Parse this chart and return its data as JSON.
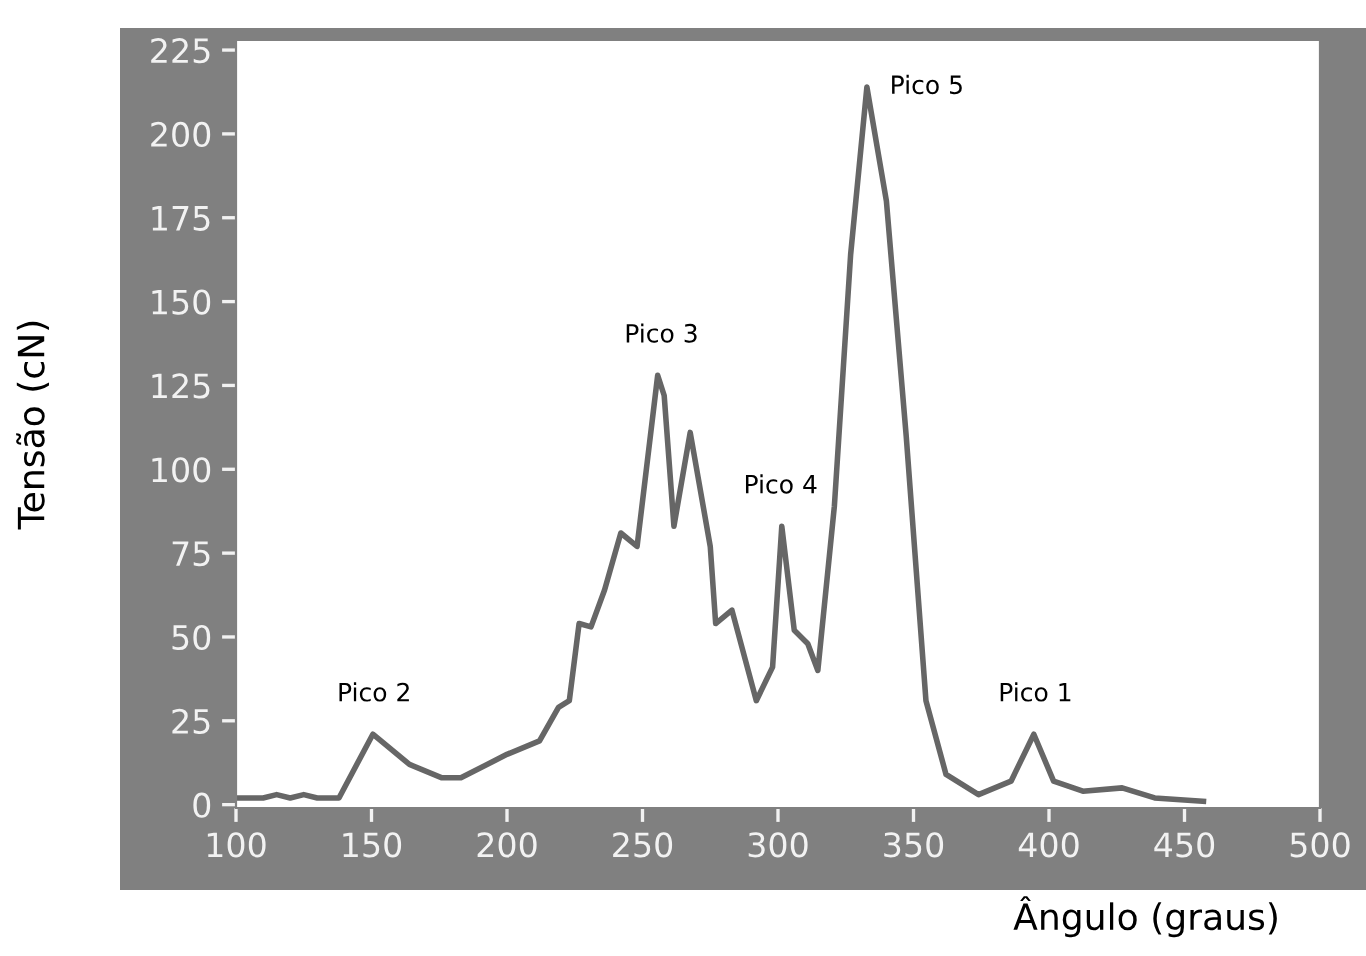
{
  "chart_data": {
    "type": "line",
    "xlabel": "Ângulo (graus)",
    "ylabel": "Tensão (cN)",
    "x": [
      101,
      110,
      115,
      120,
      125,
      130,
      138,
      150.5,
      164,
      176,
      183,
      200,
      212,
      219,
      223,
      226.6,
      231,
      236,
      242,
      248,
      255.6,
      258,
      261.6,
      267.6,
      275,
      277,
      283,
      292,
      298,
      301.4,
      306,
      311,
      314.7,
      320.8,
      326.8,
      332.8,
      340,
      347.3,
      354.6,
      362,
      374,
      386,
      394.4,
      401.7,
      412.5,
      427,
      439,
      457
    ],
    "series": [
      {
        "color": "#666666",
        "values": [
          2,
          2,
          3,
          2,
          3,
          2,
          2,
          21,
          12,
          8,
          8,
          15,
          19,
          29,
          31,
          54,
          53,
          64,
          81,
          77,
          128,
          122,
          83,
          111,
          77,
          54,
          58,
          31,
          41,
          83,
          52,
          48,
          40,
          89,
          164,
          214,
          180,
          110,
          31,
          9,
          3,
          7,
          21,
          7,
          4,
          5,
          2,
          1
        ]
      }
    ],
    "xlim": [
      100,
      500
    ],
    "ylim": [
      -1,
      228
    ],
    "xticks": [
      100,
      150,
      200,
      250,
      300,
      350,
      400,
      450,
      500
    ],
    "yticks": [
      0,
      25,
      50,
      75,
      100,
      125,
      150,
      175,
      200,
      225
    ],
    "grid": false,
    "legend": false,
    "marker": "none",
    "line_style": "solid",
    "annotations": [
      {
        "text": "Pico 1",
        "x": 395,
        "y": 21
      },
      {
        "text": "Pico 2",
        "x": 151,
        "y": 21
      },
      {
        "text": "Pico 3",
        "x": 257,
        "y": 128
      },
      {
        "text": "Pico 4",
        "x": 301,
        "y": 83
      },
      {
        "text": "Pico 5",
        "x": 333,
        "y": 214
      }
    ]
  }
}
